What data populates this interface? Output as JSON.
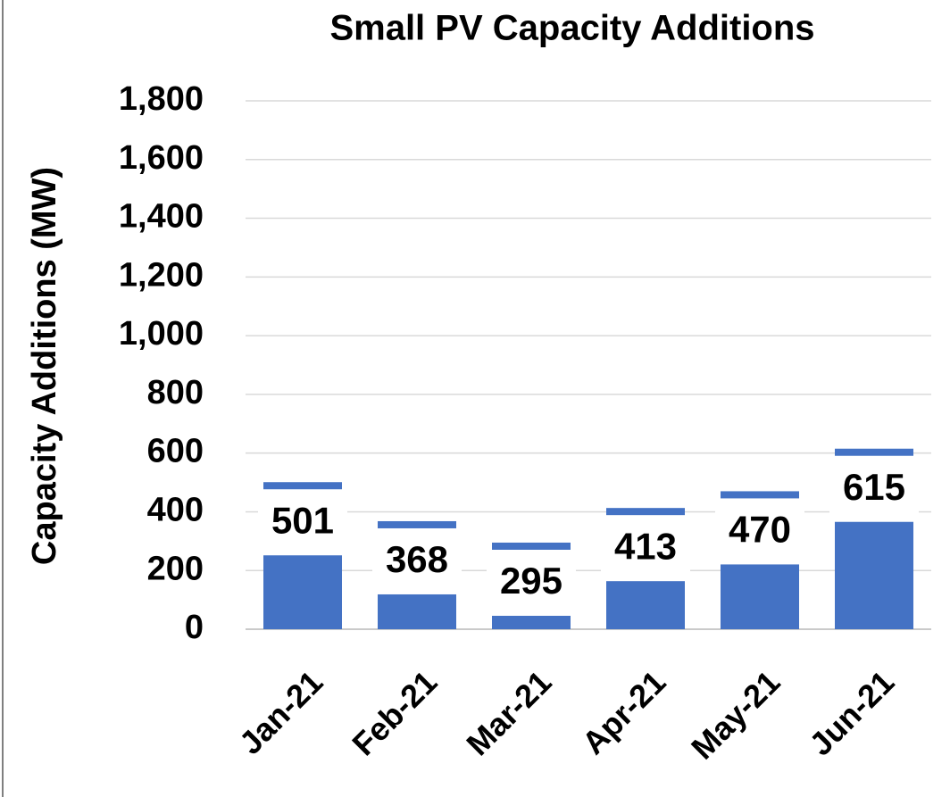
{
  "chart_data": {
    "type": "bar",
    "title": "Small PV Capacity Additions",
    "y_label": "Capacity Additions (MW)",
    "categories": [
      "Jan-21",
      "Feb-21",
      "Mar-21",
      "Apr-21",
      "May-21",
      "Jun-21"
    ],
    "values": [
      501,
      368,
      295,
      413,
      470,
      615
    ],
    "color": "#4472c4",
    "ylim": [
      0,
      1800
    ],
    "yticks": [
      0,
      200,
      400,
      600,
      800,
      {
        "value": 1000,
        "label": "1,000"
      },
      {
        "value": 1200,
        "label": "1,200"
      },
      {
        "value": 1400,
        "label": "1,400"
      },
      {
        "value": 1600,
        "label": "1,600"
      },
      {
        "value": 1800,
        "label": "1,800"
      }
    ],
    "grid": true
  }
}
